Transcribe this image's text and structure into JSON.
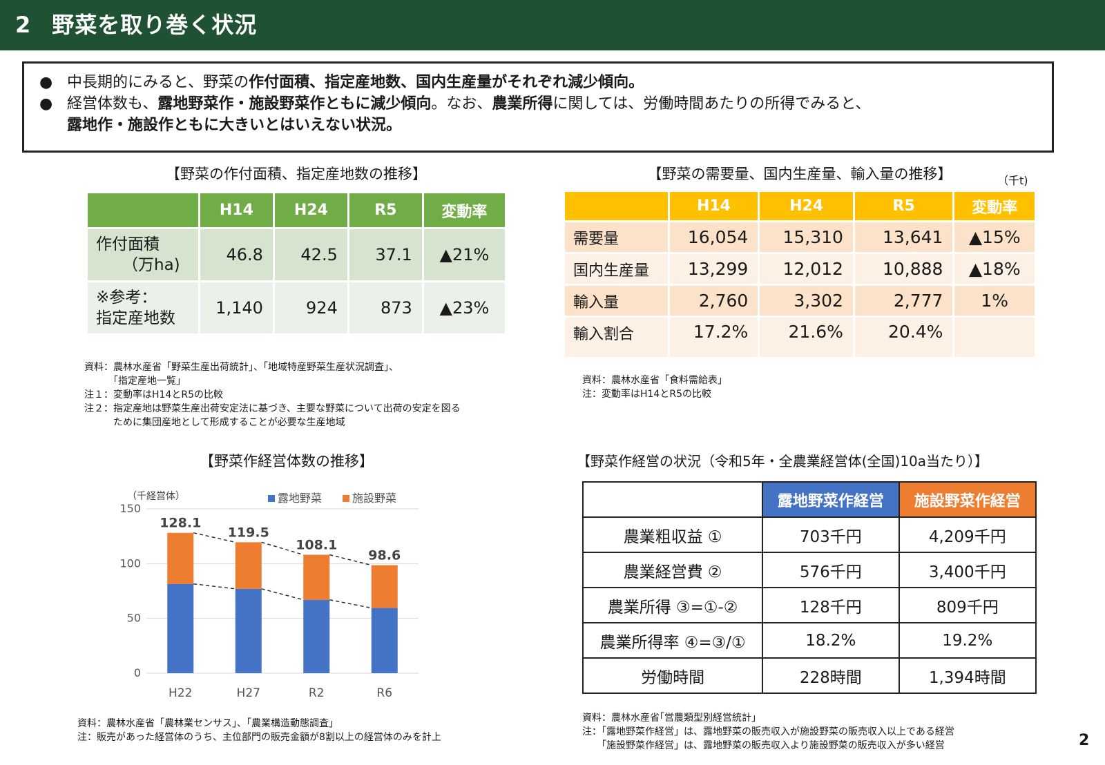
{
  "header": {
    "number": "2",
    "title": "野菜を取り巻く状況"
  },
  "summary": {
    "bullet": "●",
    "line1": {
      "a": "中長期的にみると、野菜の",
      "b": "作付面積、指定産地数、国内生産量がそれぞれ減少傾向。"
    },
    "line2": {
      "a": "経営体数も、",
      "b": "露地野菜作・施設野菜作ともに減少傾向",
      "c": "。なお、",
      "d": "農業所得",
      "e": "に関しては、労働時間あたりの所得でみると、"
    },
    "line3": {
      "b": "露地作・施設作ともに大きいとはいえない状況。"
    }
  },
  "table1": {
    "caption": "【野菜の作付面積、指定産地数の推移】",
    "headers": [
      "",
      "H14",
      "H24",
      "R5",
      "変動率"
    ],
    "rows": [
      {
        "label1": "作付面積",
        "label2": "（万ha)",
        "values": [
          "46.8",
          "42.5",
          "37.1"
        ],
        "rate": "▲21%"
      },
      {
        "label1": "※参考：",
        "label2": "指定産地数",
        "values": [
          "1,140",
          "924",
          "873"
        ],
        "rate": "▲23%"
      }
    ],
    "notes": "資料：農林水産省「野菜生産出荷統計」、「地域特産野菜生産状況調査」、\n　　　「指定産地一覧」\n注１：変動率はH14とR5の比較\n注２：指定産地は野菜生産出荷安定法に基づき、主要な野菜について出荷の安定を図る\n　　　ために集団産地として形成することが必要な生産地域"
  },
  "table2": {
    "caption": "【野菜の需要量、国内生産量、輸入量の推移】",
    "unit": "（千t)",
    "headers": [
      "",
      "H14",
      "H24",
      "R5",
      "変動率"
    ],
    "rows": [
      {
        "label": "需要量",
        "values": [
          "16,054",
          "15,310",
          "13,641"
        ],
        "rate": "▲15%"
      },
      {
        "label": "国内生産量",
        "values": [
          "13,299",
          "12,012",
          "10,888"
        ],
        "rate": "▲18%"
      },
      {
        "label": "輸入量",
        "values": [
          "2,760",
          "3,302",
          "2,777"
        ],
        "rate": "1%"
      },
      {
        "label": "輸入割合",
        "values": [
          "17.2%",
          "21.6%",
          "20.4%"
        ],
        "rate": ""
      }
    ],
    "notes": "資料：農林水産省「食料需給表」\n注：変動率はH14とR5の比較"
  },
  "chart": {
    "caption": "【野菜作経営体数の推移】",
    "notes": "資料：農林水産省「農林業センサス」、「農業構造動態調査」\n注：販売があった経営体のうち、主位部門の販売金額が8割以上の経営体のみを計上"
  },
  "chart_data": {
    "type": "bar",
    "stacked": true,
    "ylabel": "（千経営体）",
    "ylim": [
      0,
      150
    ],
    "yticks": [
      "0",
      "50",
      "100",
      "150"
    ],
    "categories": [
      "H22",
      "H27",
      "R2",
      "R6"
    ],
    "series": [
      {
        "name": "露地野菜",
        "values": [
          81.5,
          77.0,
          67.0,
          59.5
        ],
        "color": "#4472c4"
      },
      {
        "name": "施設野菜",
        "values": [
          46.6,
          42.5,
          41.1,
          39.1
        ],
        "color": "#ed7d31"
      }
    ],
    "totals": [
      "128.1",
      "119.5",
      "108.1",
      "98.6"
    ],
    "grid": true,
    "legend": "top-right",
    "trend_lines": "dashed"
  },
  "table3": {
    "caption": "【野菜作経営の状況（令和5年・全農業経営体(全国)10a当たり）】",
    "headers": [
      "",
      "露地野菜作経営",
      "施設野菜作経営"
    ],
    "rows": [
      [
        "農業粗収益 ①",
        "703千円",
        "4,209千円"
      ],
      [
        "農業経営費 ②",
        "576千円",
        "3,400千円"
      ],
      [
        "農業所得 ③=①-②",
        "128千円",
        "809千円"
      ],
      [
        "農業所得率 ④=③/①",
        "18.2%",
        "19.2%"
      ],
      [
        "労働時間",
        "228時間",
        "1,394時間"
      ]
    ],
    "notes": "資料：農林水産省｢営農類型別経営統計」\n注：「露地野菜作経営」は、露地野菜の販売収入が施設野菜の販売収入以上である経営\n　　「施設野菜作経営」は、露地野菜の販売収入より施設野菜の販売収入が多い経営"
  },
  "page_number": "2",
  "colors": {
    "header_bg": "#1f5233",
    "table1_header": "#70ad47",
    "table2_header": "#ffc000",
    "outdoor": "#4472c4",
    "greenhouse": "#ed7d31"
  }
}
